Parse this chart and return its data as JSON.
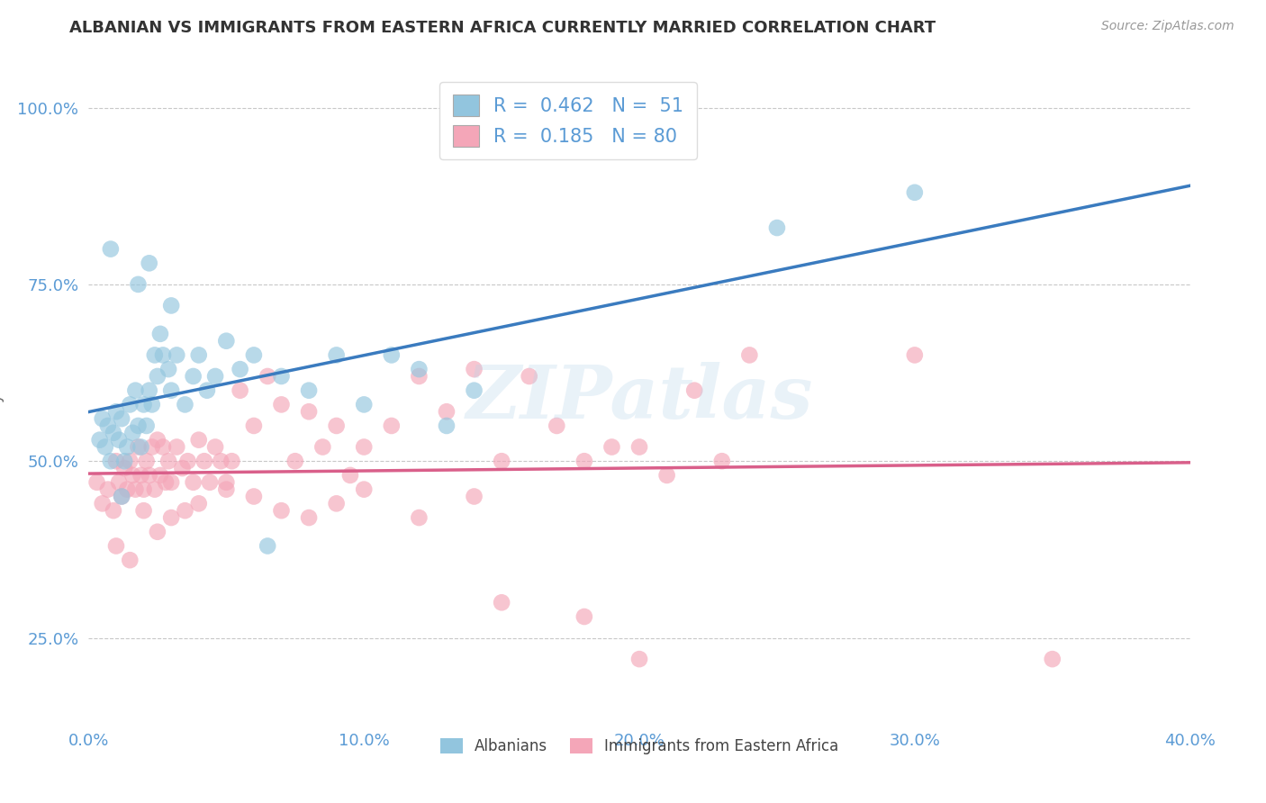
{
  "title": "ALBANIAN VS IMMIGRANTS FROM EASTERN AFRICA CURRENTLY MARRIED CORRELATION CHART",
  "source": "Source: ZipAtlas.com",
  "ylabel": "Currently Married",
  "xlim": [
    0.0,
    0.4
  ],
  "ylim": [
    0.13,
    1.05
  ],
  "xticks": [
    0.0,
    0.1,
    0.2,
    0.3,
    0.4
  ],
  "xticklabels": [
    "0.0%",
    "10.0%",
    "20.0%",
    "30.0%",
    "40.0%"
  ],
  "yticks": [
    0.25,
    0.5,
    0.75,
    1.0
  ],
  "yticklabels": [
    "25.0%",
    "50.0%",
    "75.0%",
    "100.0%"
  ],
  "blue_color": "#92c5de",
  "pink_color": "#f4a6b8",
  "blue_line_color": "#3a7bbf",
  "pink_line_color": "#d95f8a",
  "blue_R": 0.462,
  "blue_N": 51,
  "pink_R": 0.185,
  "pink_N": 80,
  "blue_label": "Albanians",
  "pink_label": "Immigrants from Eastern Africa",
  "watermark": "ZIPatlas",
  "background_color": "#ffffff",
  "grid_color": "#c8c8c8",
  "title_color": "#333333",
  "tick_color": "#5b9bd5",
  "blue_scatter_x": [
    0.004,
    0.005,
    0.006,
    0.007,
    0.008,
    0.009,
    0.01,
    0.011,
    0.012,
    0.013,
    0.014,
    0.015,
    0.016,
    0.017,
    0.018,
    0.019,
    0.02,
    0.021,
    0.022,
    0.023,
    0.024,
    0.025,
    0.027,
    0.029,
    0.03,
    0.032,
    0.035,
    0.038,
    0.04,
    0.043,
    0.046,
    0.05,
    0.055,
    0.06,
    0.065,
    0.07,
    0.08,
    0.09,
    0.1,
    0.11,
    0.12,
    0.13,
    0.14,
    0.018,
    0.022,
    0.026,
    0.03,
    0.008,
    0.012,
    0.25,
    0.3
  ],
  "blue_scatter_y": [
    0.53,
    0.56,
    0.52,
    0.55,
    0.5,
    0.54,
    0.57,
    0.53,
    0.56,
    0.5,
    0.52,
    0.58,
    0.54,
    0.6,
    0.55,
    0.52,
    0.58,
    0.55,
    0.6,
    0.58,
    0.65,
    0.62,
    0.65,
    0.63,
    0.6,
    0.65,
    0.58,
    0.62,
    0.65,
    0.6,
    0.62,
    0.67,
    0.63,
    0.65,
    0.38,
    0.62,
    0.6,
    0.65,
    0.58,
    0.65,
    0.63,
    0.55,
    0.6,
    0.75,
    0.78,
    0.68,
    0.72,
    0.8,
    0.45,
    0.83,
    0.88
  ],
  "pink_scatter_x": [
    0.003,
    0.005,
    0.007,
    0.009,
    0.01,
    0.011,
    0.012,
    0.013,
    0.014,
    0.015,
    0.016,
    0.017,
    0.018,
    0.019,
    0.02,
    0.021,
    0.022,
    0.023,
    0.024,
    0.025,
    0.026,
    0.027,
    0.028,
    0.029,
    0.03,
    0.032,
    0.034,
    0.036,
    0.038,
    0.04,
    0.042,
    0.044,
    0.046,
    0.048,
    0.05,
    0.052,
    0.055,
    0.06,
    0.065,
    0.07,
    0.075,
    0.08,
    0.085,
    0.09,
    0.095,
    0.1,
    0.11,
    0.12,
    0.13,
    0.14,
    0.15,
    0.16,
    0.17,
    0.18,
    0.19,
    0.2,
    0.21,
    0.22,
    0.23,
    0.24,
    0.01,
    0.015,
    0.02,
    0.025,
    0.03,
    0.035,
    0.04,
    0.05,
    0.06,
    0.07,
    0.08,
    0.09,
    0.1,
    0.12,
    0.14,
    0.15,
    0.18,
    0.2,
    0.3,
    0.35
  ],
  "pink_scatter_y": [
    0.47,
    0.44,
    0.46,
    0.43,
    0.5,
    0.47,
    0.45,
    0.49,
    0.46,
    0.5,
    0.48,
    0.46,
    0.52,
    0.48,
    0.46,
    0.5,
    0.48,
    0.52,
    0.46,
    0.53,
    0.48,
    0.52,
    0.47,
    0.5,
    0.47,
    0.52,
    0.49,
    0.5,
    0.47,
    0.53,
    0.5,
    0.47,
    0.52,
    0.5,
    0.47,
    0.5,
    0.6,
    0.55,
    0.62,
    0.58,
    0.5,
    0.57,
    0.52,
    0.55,
    0.48,
    0.52,
    0.55,
    0.62,
    0.57,
    0.63,
    0.5,
    0.62,
    0.55,
    0.5,
    0.52,
    0.52,
    0.48,
    0.6,
    0.5,
    0.65,
    0.38,
    0.36,
    0.43,
    0.4,
    0.42,
    0.43,
    0.44,
    0.46,
    0.45,
    0.43,
    0.42,
    0.44,
    0.46,
    0.42,
    0.45,
    0.3,
    0.28,
    0.22,
    0.65,
    0.22
  ]
}
